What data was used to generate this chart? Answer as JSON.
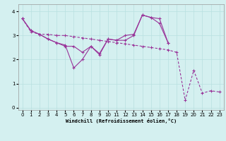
{
  "title": "",
  "xlabel": "Windchill (Refroidissement éolien,°C)",
  "background_color": "#d4f0f0",
  "line_color": "#993399",
  "grid_color": "#b8e0e0",
  "x": [
    0,
    1,
    2,
    3,
    4,
    5,
    6,
    7,
    8,
    9,
    10,
    11,
    12,
    13,
    14,
    15,
    16,
    17,
    18,
    19,
    20,
    21,
    22,
    23
  ],
  "line1_x": [
    0,
    1,
    2,
    3,
    4,
    5,
    6,
    7,
    8,
    9,
    10,
    11,
    12,
    13,
    14,
    15,
    16,
    17
  ],
  "line1_y": [
    3.7,
    3.2,
    3.05,
    2.85,
    2.7,
    2.6,
    1.65,
    2.0,
    2.55,
    2.25,
    2.85,
    2.8,
    3.0,
    3.05,
    3.85,
    3.75,
    3.7,
    2.7
  ],
  "line2_x": [
    0,
    1,
    2,
    3,
    4,
    5,
    6,
    7,
    8,
    9,
    10,
    11,
    12,
    13,
    14,
    15,
    16,
    17,
    18,
    19,
    20,
    21,
    22,
    23
  ],
  "line2_y": [
    3.7,
    3.15,
    3.05,
    3.05,
    3.0,
    3.0,
    2.95,
    2.9,
    2.85,
    2.8,
    2.75,
    2.7,
    2.65,
    2.6,
    2.55,
    2.5,
    2.45,
    2.4,
    2.3,
    0.3,
    1.55,
    0.6,
    0.7,
    0.65
  ],
  "line3_x": [
    0,
    1,
    2,
    3,
    4,
    5,
    6,
    7,
    8,
    9,
    10,
    11,
    12,
    13,
    14,
    15,
    16,
    17
  ],
  "line3_y": [
    3.7,
    3.2,
    3.05,
    2.85,
    2.7,
    2.55,
    2.55,
    2.3,
    2.55,
    2.2,
    2.85,
    2.8,
    2.8,
    3.0,
    3.85,
    3.75,
    3.5,
    2.7
  ],
  "ylim": [
    -0.1,
    4.3
  ],
  "xlim": [
    -0.5,
    23.5
  ],
  "yticks": [
    0,
    1,
    2,
    3,
    4
  ],
  "xticks": [
    0,
    1,
    2,
    3,
    4,
    5,
    6,
    7,
    8,
    9,
    10,
    11,
    12,
    13,
    14,
    15,
    16,
    17,
    18,
    19,
    20,
    21,
    22,
    23
  ]
}
